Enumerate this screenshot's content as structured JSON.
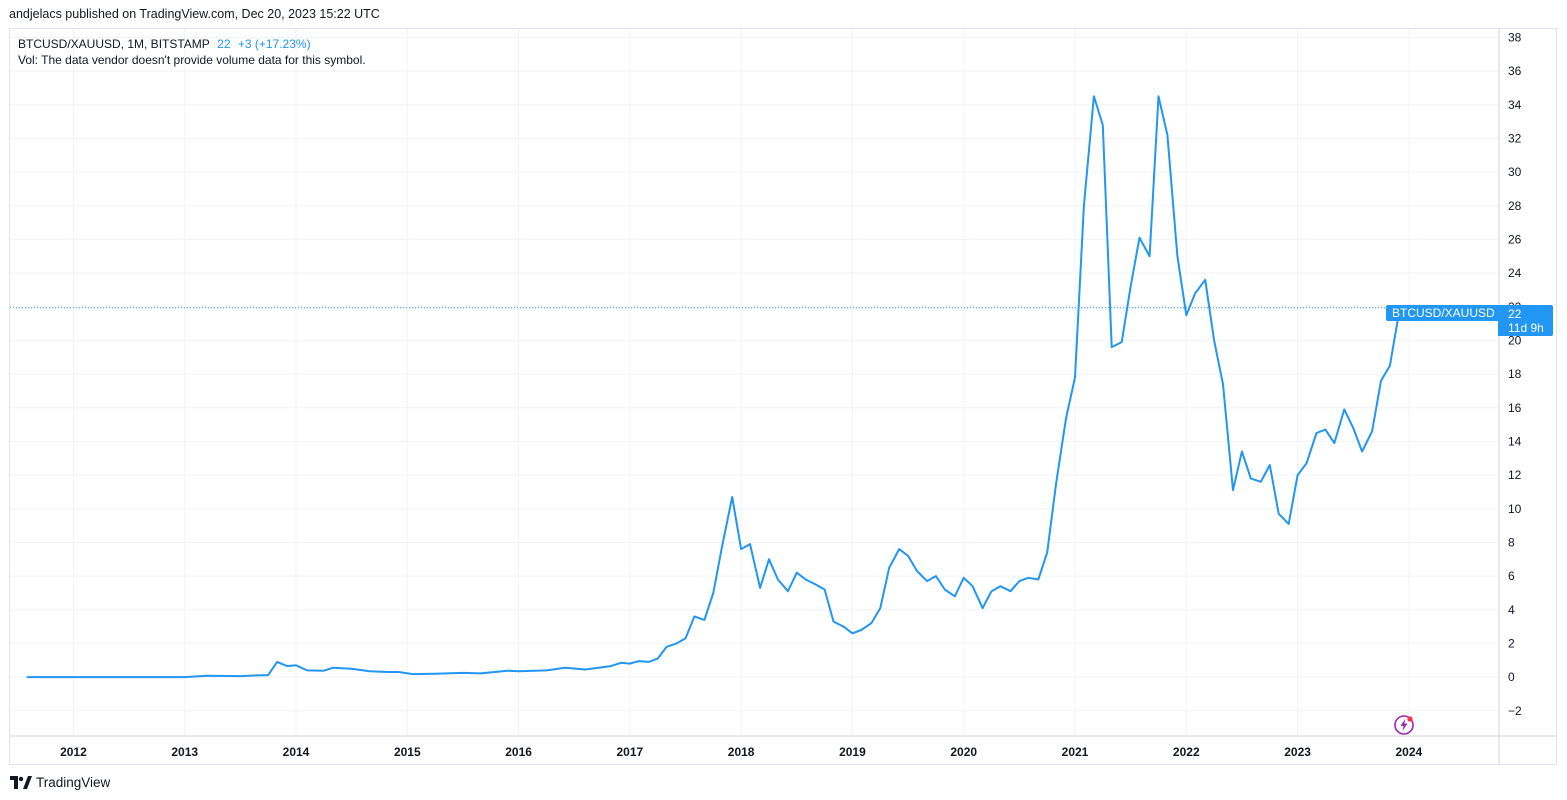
{
  "header": {
    "published": "andjelacs published on TradingView.com, Dec 20, 2023 15:22 UTC"
  },
  "legend": {
    "symbol": "BTCUSD/XAUUSD, 1M, BITSTAMP",
    "last": "22",
    "change": "+3 (+17.23%)",
    "volume_note": "Vol: The data vendor doesn't provide volume data for this symbol."
  },
  "price_label": {
    "symbol": "BTCUSD/XAUUSD",
    "value": "22",
    "countdown": "11d 9h"
  },
  "footer": {
    "brand": "TradingView"
  },
  "colors": {
    "line": "#2196f3",
    "grid": "#f0f3fa",
    "axis_text": "#131722"
  },
  "icons": {
    "footer": "tradingview-logo-icon",
    "chart": "lightning-icon"
  },
  "chart_data": {
    "type": "line",
    "title": "BTCUSD/XAUUSD, 1M, BITSTAMP",
    "ylim": [
      -3.5,
      38.5
    ],
    "xlim": [
      2011.43,
      2024.81
    ],
    "grid": true,
    "y_ticks": [
      -2,
      0,
      2,
      4,
      6,
      8,
      10,
      12,
      14,
      16,
      18,
      20,
      22,
      24,
      26,
      28,
      30,
      32,
      34,
      36,
      38
    ],
    "x_ticks": [
      "2012",
      "2013",
      "2014",
      "2015",
      "2016",
      "2017",
      "2018",
      "2019",
      "2020",
      "2021",
      "2022",
      "2023",
      "2024"
    ],
    "last_value": 22,
    "series": [
      {
        "points": [
          [
            2011.58,
            0.0
          ],
          [
            2012.0,
            0.0
          ],
          [
            2012.5,
            0.0
          ],
          [
            2013.0,
            0.0
          ],
          [
            2013.2,
            0.08
          ],
          [
            2013.5,
            0.06
          ],
          [
            2013.65,
            0.1
          ],
          [
            2013.75,
            0.12
          ],
          [
            2013.83,
            0.9
          ],
          [
            2013.92,
            0.65
          ],
          [
            2014.0,
            0.7
          ],
          [
            2014.1,
            0.4
          ],
          [
            2014.25,
            0.38
          ],
          [
            2014.33,
            0.55
          ],
          [
            2014.5,
            0.5
          ],
          [
            2014.66,
            0.35
          ],
          [
            2014.83,
            0.3
          ],
          [
            2014.92,
            0.3
          ],
          [
            2015.05,
            0.18
          ],
          [
            2015.25,
            0.2
          ],
          [
            2015.5,
            0.25
          ],
          [
            2015.66,
            0.22
          ],
          [
            2015.9,
            0.38
          ],
          [
            2016.0,
            0.35
          ],
          [
            2016.25,
            0.4
          ],
          [
            2016.42,
            0.55
          ],
          [
            2016.6,
            0.45
          ],
          [
            2016.83,
            0.65
          ],
          [
            2016.92,
            0.85
          ],
          [
            2017.0,
            0.8
          ],
          [
            2017.08,
            0.95
          ],
          [
            2017.17,
            0.9
          ],
          [
            2017.25,
            1.1
          ],
          [
            2017.33,
            1.8
          ],
          [
            2017.42,
            2.0
          ],
          [
            2017.5,
            2.3
          ],
          [
            2017.58,
            3.6
          ],
          [
            2017.67,
            3.4
          ],
          [
            2017.75,
            5.0
          ],
          [
            2017.83,
            7.8
          ],
          [
            2017.92,
            10.7
          ],
          [
            2018.0,
            7.6
          ],
          [
            2018.08,
            7.9
          ],
          [
            2018.17,
            5.3
          ],
          [
            2018.25,
            7.0
          ],
          [
            2018.33,
            5.8
          ],
          [
            2018.42,
            5.1
          ],
          [
            2018.5,
            6.2
          ],
          [
            2018.58,
            5.8
          ],
          [
            2018.67,
            5.5
          ],
          [
            2018.75,
            5.2
          ],
          [
            2018.83,
            3.3
          ],
          [
            2018.92,
            3.0
          ],
          [
            2019.0,
            2.6
          ],
          [
            2019.08,
            2.8
          ],
          [
            2019.17,
            3.2
          ],
          [
            2019.25,
            4.1
          ],
          [
            2019.33,
            6.5
          ],
          [
            2019.42,
            7.6
          ],
          [
            2019.5,
            7.2
          ],
          [
            2019.58,
            6.3
          ],
          [
            2019.67,
            5.7
          ],
          [
            2019.75,
            6.0
          ],
          [
            2019.83,
            5.2
          ],
          [
            2019.92,
            4.8
          ],
          [
            2020.0,
            5.9
          ],
          [
            2020.08,
            5.4
          ],
          [
            2020.17,
            4.1
          ],
          [
            2020.25,
            5.1
          ],
          [
            2020.33,
            5.4
          ],
          [
            2020.42,
            5.1
          ],
          [
            2020.5,
            5.7
          ],
          [
            2020.58,
            5.9
          ],
          [
            2020.67,
            5.8
          ],
          [
            2020.75,
            7.4
          ],
          [
            2020.83,
            11.5
          ],
          [
            2020.92,
            15.4
          ],
          [
            2021.0,
            17.8
          ],
          [
            2021.08,
            28.0
          ],
          [
            2021.17,
            34.5
          ],
          [
            2021.25,
            32.8
          ],
          [
            2021.33,
            19.6
          ],
          [
            2021.42,
            19.9
          ],
          [
            2021.5,
            23.2
          ],
          [
            2021.58,
            26.1
          ],
          [
            2021.67,
            25.0
          ],
          [
            2021.75,
            34.5
          ],
          [
            2021.83,
            32.2
          ],
          [
            2021.92,
            25.0
          ],
          [
            2022.0,
            21.5
          ],
          [
            2022.08,
            22.8
          ],
          [
            2022.17,
            23.6
          ],
          [
            2022.25,
            20.0
          ],
          [
            2022.33,
            17.4
          ],
          [
            2022.42,
            11.1
          ],
          [
            2022.5,
            13.4
          ],
          [
            2022.58,
            11.8
          ],
          [
            2022.67,
            11.6
          ],
          [
            2022.75,
            12.6
          ],
          [
            2022.83,
            9.7
          ],
          [
            2022.92,
            9.1
          ],
          [
            2023.0,
            12.0
          ],
          [
            2023.08,
            12.7
          ],
          [
            2023.17,
            14.5
          ],
          [
            2023.25,
            14.7
          ],
          [
            2023.33,
            13.9
          ],
          [
            2023.42,
            15.9
          ],
          [
            2023.5,
            14.8
          ],
          [
            2023.58,
            13.4
          ],
          [
            2023.67,
            14.6
          ],
          [
            2023.75,
            17.6
          ],
          [
            2023.83,
            18.5
          ],
          [
            2023.92,
            22.0
          ]
        ]
      }
    ]
  }
}
